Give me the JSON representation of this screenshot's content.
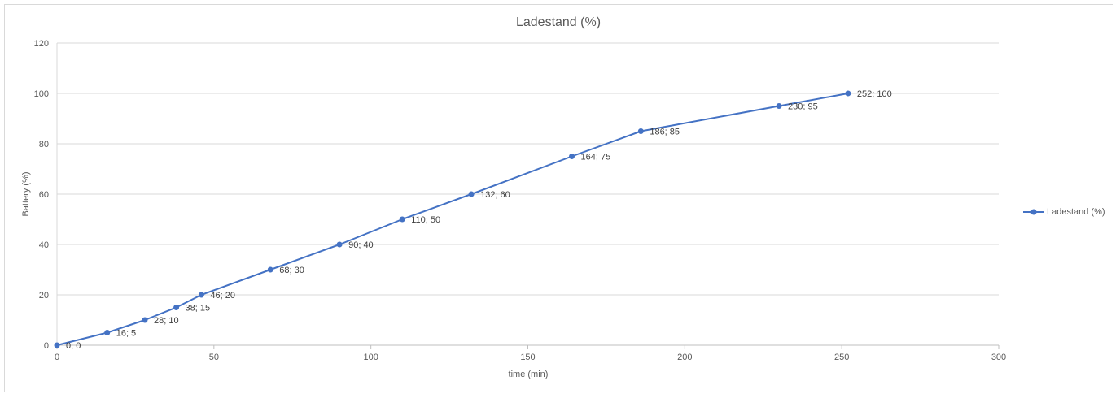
{
  "chart_data": {
    "type": "line",
    "title": "Ladestand (%)",
    "xlabel": "time (min)",
    "ylabel": "Battery (%)",
    "xlim": [
      0,
      300
    ],
    "ylim": [
      0,
      120
    ],
    "xticks": [
      0,
      50,
      100,
      150,
      200,
      250,
      300
    ],
    "yticks": [
      0,
      20,
      40,
      60,
      80,
      100,
      120
    ],
    "grid": "horizontal",
    "legend_position": "right",
    "series": [
      {
        "name": "Ladestand (%)",
        "color": "#4472c4",
        "marker": "circle",
        "points": [
          {
            "x": 0,
            "y": 0,
            "label": "0; 0"
          },
          {
            "x": 16,
            "y": 5,
            "label": "16; 5"
          },
          {
            "x": 28,
            "y": 10,
            "label": "28; 10"
          },
          {
            "x": 38,
            "y": 15,
            "label": "38; 15"
          },
          {
            "x": 46,
            "y": 20,
            "label": "46; 20"
          },
          {
            "x": 68,
            "y": 30,
            "label": "68; 30"
          },
          {
            "x": 90,
            "y": 40,
            "label": "90; 40"
          },
          {
            "x": 110,
            "y": 50,
            "label": "110; 50"
          },
          {
            "x": 132,
            "y": 60,
            "label": "132; 60"
          },
          {
            "x": 164,
            "y": 75,
            "label": "164; 75"
          },
          {
            "x": 186,
            "y": 85,
            "label": "186; 85"
          },
          {
            "x": 230,
            "y": 95,
            "label": "230; 95"
          },
          {
            "x": 252,
            "y": 100,
            "label": "252; 100"
          }
        ]
      }
    ]
  }
}
